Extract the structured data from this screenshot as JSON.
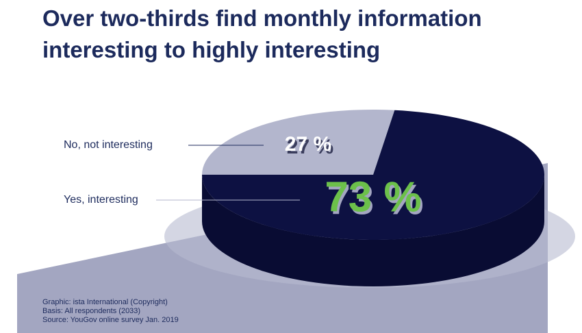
{
  "chart_data": {
    "type": "pie",
    "title": "Over two-thirds find monthly information interesting to highly interesting",
    "categories": [
      "No, not interesting",
      "Yes, interesting"
    ],
    "values": [
      27,
      73
    ],
    "value_labels": [
      "27 %",
      "73 %"
    ],
    "colors": [
      "#b3b6cd",
      "#0d1142"
    ],
    "label_colors": [
      "#ffffff",
      "#6cc04a"
    ],
    "notes": [
      "Graphic: ista International (Copyright)",
      "Basis: All respondents (2033)",
      "Source: YouGov online survey Jan. 2019"
    ]
  }
}
